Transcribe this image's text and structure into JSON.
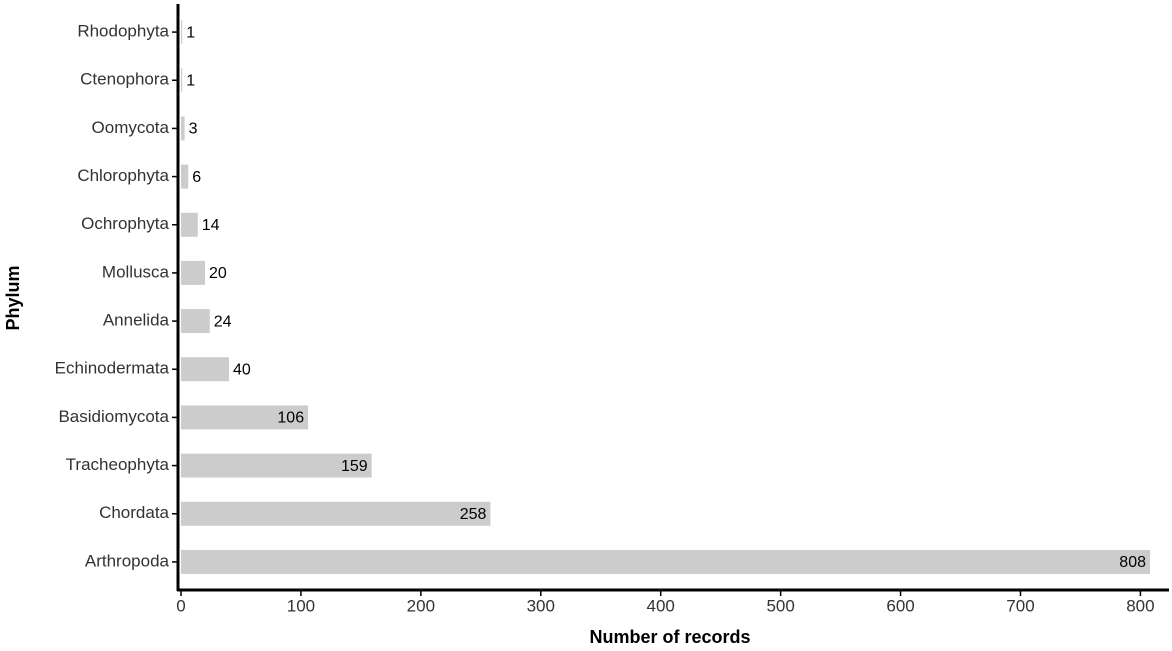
{
  "chart_data": {
    "type": "barh",
    "x_label": "Number of records",
    "y_label": "Phylum",
    "categories": [
      "Rhodophyta",
      "Ctenophora",
      "Oomycota",
      "Chlorophyta",
      "Ochrophyta",
      "Mollusca",
      "Annelida",
      "Echinodermata",
      "Basidiomycota",
      "Tracheophyta",
      "Chordata",
      "Arthropoda"
    ],
    "values": [
      1,
      1,
      3,
      6,
      14,
      20,
      24,
      40,
      106,
      159,
      258,
      808
    ],
    "color": "#cccccc",
    "xlim": [
      0,
      823
    ],
    "xticks": [
      0,
      100,
      200,
      300,
      400,
      500,
      600,
      700,
      800
    ]
  }
}
